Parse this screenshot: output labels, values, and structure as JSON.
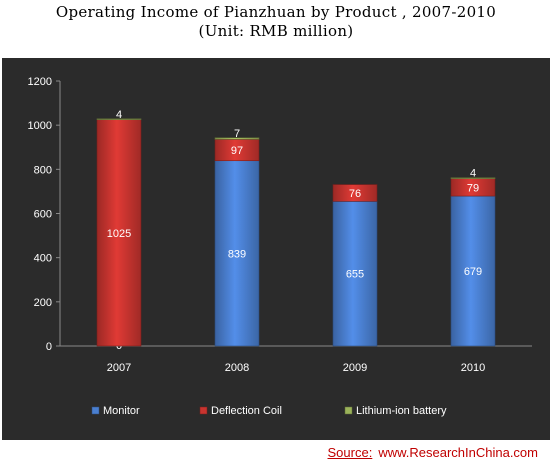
{
  "header": {
    "title": "Operating Income of Pianzhuan by Product , 2007-2010",
    "subtitle": "(Unit: RMB million)"
  },
  "footer": {
    "source_label": "Source:",
    "source_url": "www.ResearchInChina.com"
  },
  "colors": {
    "background": "#2b2b2b",
    "monitor": "#4a7fd0",
    "deflection_coil": "#c8342f",
    "lithium_ion_battery": "#9bb35a",
    "text": "#ffffff",
    "source": "#c00000"
  },
  "chart_data": {
    "type": "bar",
    "stacked": true,
    "title": "Operating Income of Pianzhuan by Product , 2007-2010",
    "subtitle": "(Unit: RMB million)",
    "categories": [
      "2007",
      "2008",
      "2009",
      "2010"
    ],
    "series": [
      {
        "name": "Monitor",
        "values": [
          0,
          839,
          655,
          679
        ]
      },
      {
        "name": "Deflection Coil",
        "values": [
          1025,
          97,
          76,
          79
        ]
      },
      {
        "name": "Lithium-ion battery",
        "values": [
          4,
          7,
          0,
          4
        ]
      }
    ],
    "data_labels": [
      [
        "0",
        "839",
        "655",
        "679"
      ],
      [
        "1025",
        "97",
        "76",
        "79"
      ],
      [
        "4",
        "7",
        "",
        "4"
      ]
    ],
    "ylim": [
      0,
      1200
    ],
    "yticks": [
      0,
      200,
      400,
      600,
      800,
      1000,
      1200
    ],
    "ytick_labels": [
      "0",
      "200",
      "400",
      "600",
      "800",
      "1000",
      "1200"
    ],
    "grid": false,
    "legend_position": "bottom"
  }
}
